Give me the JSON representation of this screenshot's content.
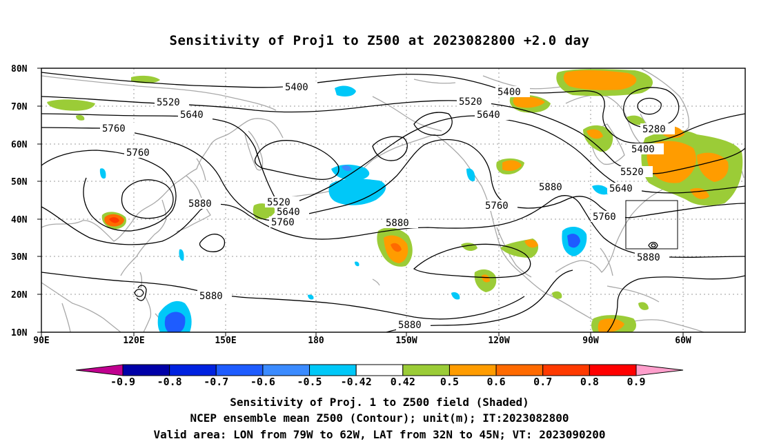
{
  "title": "Sensitivity of Proj1 to Z500 at 2023082800 +2.0 day",
  "lat_labels": [
    "80N",
    "70N",
    "60N",
    "50N",
    "40N",
    "30N",
    "20N",
    "10N"
  ],
  "lon_labels": [
    "90E",
    "120E",
    "150E",
    "180",
    "150W",
    "120W",
    "90W",
    "60W"
  ],
  "contour_labels": {
    "c5400a": "5400",
    "c5400b": "5400",
    "c5400c": "5400",
    "c5520a": "5520",
    "c5520b": "5520",
    "c5520c": "5520",
    "c5520d": "5520",
    "c5640a": "5640",
    "c5640b": "5640",
    "c5640c": "5640",
    "c5640d": "5640",
    "c5760a": "5760",
    "c5760b": "5760",
    "c5760c": "5760",
    "c5760d": "5760",
    "c5760e": "5760",
    "c5880a": "5880",
    "c5880b": "5880",
    "c5880c": "5880",
    "c5880d": "5880",
    "c5880e": "5880",
    "c5880f": "5880",
    "c5280a": "5280"
  },
  "colorbar": {
    "labels": [
      "-0.9",
      "-0.8",
      "-0.7",
      "-0.6",
      "-0.5",
      "-0.42",
      "0.42",
      "0.5",
      "0.6",
      "0.7",
      "0.8",
      "0.9"
    ],
    "colors": [
      "#c0008f",
      "#0000a8",
      "#0022e0",
      "#1e5cff",
      "#3b8bff",
      "#00c8f8",
      "#ffffff",
      "#9bcc37",
      "#ff9c00",
      "#ff6a00",
      "#ff3a00",
      "#ff0000",
      "#ff9fcc"
    ]
  },
  "captions": {
    "line1": "Sensitivity of Proj. 1 to Z500 field (Shaded)",
    "line2": "NCEP ensemble mean Z500 (Contour); unit(m); IT:2023082800",
    "line3": "Valid area: LON from 79W to 62W, LAT from 32N to 45N; VT: 2023090200"
  },
  "valid_area": {
    "lon": [
      "79W",
      "62W"
    ],
    "lat": [
      "32N",
      "45N"
    ]
  }
}
